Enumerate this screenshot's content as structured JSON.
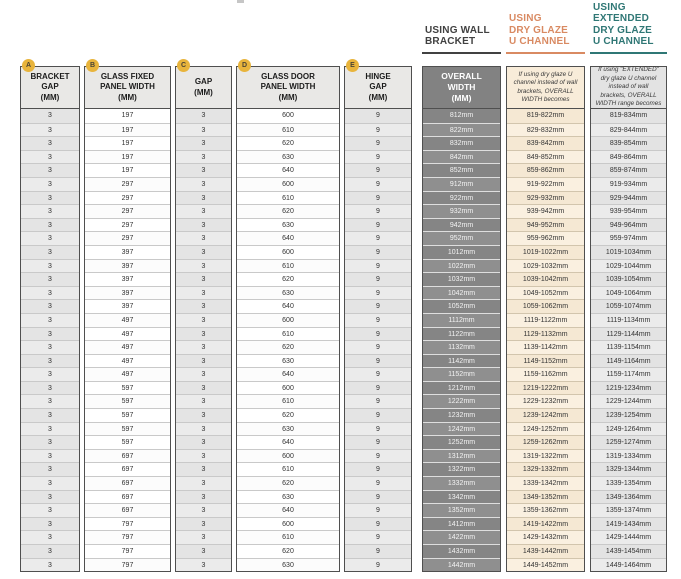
{
  "colors": {
    "badge_gold": "#e8b43c",
    "wall_bracket_header": "#414141",
    "dry_glaze_header": "#d98a62",
    "extended_header": "#2f7775",
    "overall_column_bg": "#828282",
    "dry_glaze_column_bg": "#f8ecd9"
  },
  "group_headers": {
    "wall_bracket": "USING WALL\nBRACKET",
    "dry_glaze": "USING\nDRY GLAZE\nU CHANNEL",
    "extended": "USING\nEXTENDED\nDRY GLAZE\nU CHANNEL"
  },
  "table": {
    "columns": [
      {
        "badge": "A",
        "header": "BRACKET\nGAP\n(MM)"
      },
      {
        "badge": "B",
        "header": "GLASS FIXED\nPANEL WIDTH\n(MM)"
      },
      {
        "badge": "C",
        "header": "GAP\n(MM)"
      },
      {
        "badge": "D",
        "header": "GLASS DOOR\nPANEL WIDTH\n(MM)"
      },
      {
        "badge": "E",
        "header": "HINGE\nGAP\n(MM)"
      },
      {
        "header": "OVERALL\nWIDTH\n(MM)"
      },
      {
        "header": "If using dry glaze U channel instead of wall brackets, OVERALL WIDTH becomes"
      },
      {
        "header": "If using \"EXTENDED\" dry glaze U channel instead of wall brackets, OVERALL WIDTH range becomes"
      }
    ],
    "rows": [
      [
        "3",
        "197",
        "3",
        "600",
        "9",
        "812mm",
        "819-822mm",
        "819-834mm"
      ],
      [
        "3",
        "197",
        "3",
        "610",
        "9",
        "822mm",
        "829-832mm",
        "829-844mm"
      ],
      [
        "3",
        "197",
        "3",
        "620",
        "9",
        "832mm",
        "839-842mm",
        "839-854mm"
      ],
      [
        "3",
        "197",
        "3",
        "630",
        "9",
        "842mm",
        "849-852mm",
        "849-864mm"
      ],
      [
        "3",
        "197",
        "3",
        "640",
        "9",
        "852mm",
        "859-862mm",
        "859-874mm"
      ],
      [
        "3",
        "297",
        "3",
        "600",
        "9",
        "912mm",
        "919-922mm",
        "919-934mm"
      ],
      [
        "3",
        "297",
        "3",
        "610",
        "9",
        "922mm",
        "929-932mm",
        "929-944mm"
      ],
      [
        "3",
        "297",
        "3",
        "620",
        "9",
        "932mm",
        "939-942mm",
        "939-954mm"
      ],
      [
        "3",
        "297",
        "3",
        "630",
        "9",
        "942mm",
        "949-952mm",
        "949-964mm"
      ],
      [
        "3",
        "297",
        "3",
        "640",
        "9",
        "952mm",
        "959-962mm",
        "959-974mm"
      ],
      [
        "3",
        "397",
        "3",
        "600",
        "9",
        "1012mm",
        "1019-1022mm",
        "1019-1034mm"
      ],
      [
        "3",
        "397",
        "3",
        "610",
        "9",
        "1022mm",
        "1029-1032mm",
        "1029-1044mm"
      ],
      [
        "3",
        "397",
        "3",
        "620",
        "9",
        "1032mm",
        "1039-1042mm",
        "1039-1054mm"
      ],
      [
        "3",
        "397",
        "3",
        "630",
        "9",
        "1042mm",
        "1049-1052mm",
        "1049-1064mm"
      ],
      [
        "3",
        "397",
        "3",
        "640",
        "9",
        "1052mm",
        "1059-1062mm",
        "1059-1074mm"
      ],
      [
        "3",
        "497",
        "3",
        "600",
        "9",
        "1112mm",
        "1119-1122mm",
        "1119-1134mm"
      ],
      [
        "3",
        "497",
        "3",
        "610",
        "9",
        "1122mm",
        "1129-1132mm",
        "1129-1144mm"
      ],
      [
        "3",
        "497",
        "3",
        "620",
        "9",
        "1132mm",
        "1139-1142mm",
        "1139-1154mm"
      ],
      [
        "3",
        "497",
        "3",
        "630",
        "9",
        "1142mm",
        "1149-1152mm",
        "1149-1164mm"
      ],
      [
        "3",
        "497",
        "3",
        "640",
        "9",
        "1152mm",
        "1159-1162mm",
        "1159-1174mm"
      ],
      [
        "3",
        "597",
        "3",
        "600",
        "9",
        "1212mm",
        "1219-1222mm",
        "1219-1234mm"
      ],
      [
        "3",
        "597",
        "3",
        "610",
        "9",
        "1222mm",
        "1229-1232mm",
        "1229-1244mm"
      ],
      [
        "3",
        "597",
        "3",
        "620",
        "9",
        "1232mm",
        "1239-1242mm",
        "1239-1254mm"
      ],
      [
        "3",
        "597",
        "3",
        "630",
        "9",
        "1242mm",
        "1249-1252mm",
        "1249-1264mm"
      ],
      [
        "3",
        "597",
        "3",
        "640",
        "9",
        "1252mm",
        "1259-1262mm",
        "1259-1274mm"
      ],
      [
        "3",
        "697",
        "3",
        "600",
        "9",
        "1312mm",
        "1319-1322mm",
        "1319-1334mm"
      ],
      [
        "3",
        "697",
        "3",
        "610",
        "9",
        "1322mm",
        "1329-1332mm",
        "1329-1344mm"
      ],
      [
        "3",
        "697",
        "3",
        "620",
        "9",
        "1332mm",
        "1339-1342mm",
        "1339-1354mm"
      ],
      [
        "3",
        "697",
        "3",
        "630",
        "9",
        "1342mm",
        "1349-1352mm",
        "1349-1364mm"
      ],
      [
        "3",
        "697",
        "3",
        "640",
        "9",
        "1352mm",
        "1359-1362mm",
        "1359-1374mm"
      ],
      [
        "3",
        "797",
        "3",
        "600",
        "9",
        "1412mm",
        "1419-1422mm",
        "1419-1434mm"
      ],
      [
        "3",
        "797",
        "3",
        "610",
        "9",
        "1422mm",
        "1429-1432mm",
        "1429-1444mm"
      ],
      [
        "3",
        "797",
        "3",
        "620",
        "9",
        "1432mm",
        "1439-1442mm",
        "1439-1454mm"
      ],
      [
        "3",
        "797",
        "3",
        "630",
        "9",
        "1442mm",
        "1449-1452mm",
        "1449-1464mm"
      ]
    ]
  }
}
